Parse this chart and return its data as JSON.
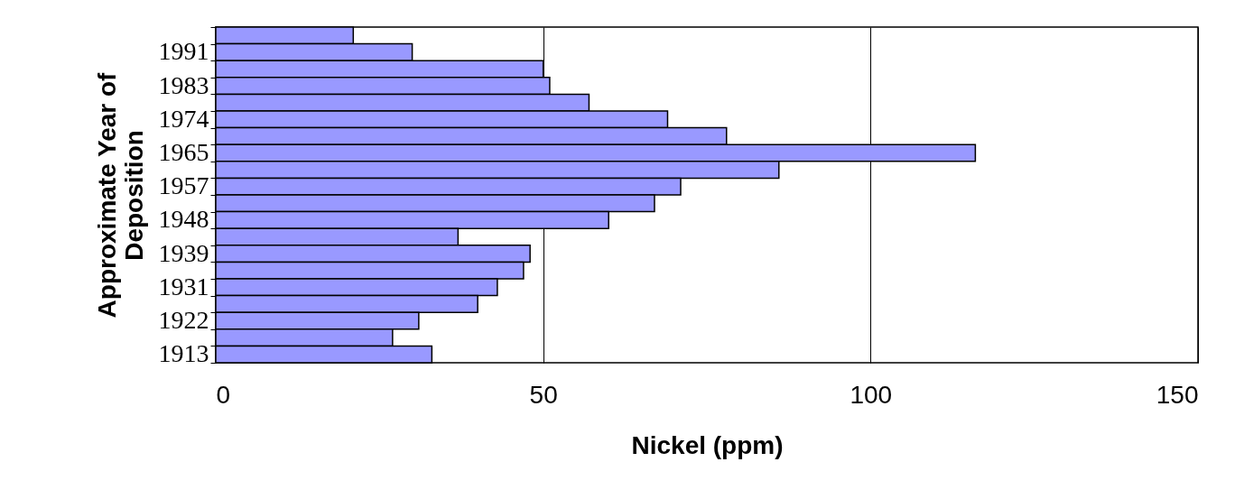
{
  "chart_data": {
    "type": "bar",
    "orientation": "horizontal",
    "xlabel": "Nickel (ppm)",
    "ylabel": "Approximate Year of Deposition",
    "categories": [
      null,
      "1991",
      null,
      "1983",
      null,
      "1974",
      null,
      "1965",
      null,
      "1957",
      null,
      "1948",
      null,
      "1939",
      null,
      "1931",
      null,
      "1922",
      null,
      "1913"
    ],
    "values": [
      21,
      30,
      50,
      51,
      57,
      69,
      78,
      116,
      86,
      71,
      67,
      60,
      37,
      48,
      47,
      43,
      40,
      31,
      27,
      33
    ],
    "color": "#9999ff",
    "xlim": [
      0,
      150
    ],
    "xticks": [
      0,
      50,
      100,
      150
    ],
    "grid": "x"
  }
}
